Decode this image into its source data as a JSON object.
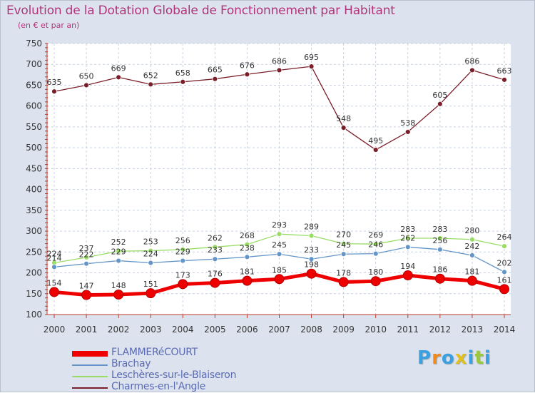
{
  "chart_data": {
    "type": "line",
    "title": "Evolution de la Dotation Globale de Fonctionnement par Habitant",
    "subtitle": "(en € et par an)",
    "xlabel": "",
    "ylabel": "",
    "ylim": [
      100,
      750
    ],
    "y_ticks": [
      "100",
      "150",
      "200",
      "250",
      "300",
      "350",
      "400",
      "450",
      "500",
      "550",
      "600",
      "650",
      "700",
      "750"
    ],
    "grid": true,
    "categories": [
      "2000",
      "2001",
      "2002",
      "2003",
      "2004",
      "2005",
      "2006",
      "2007",
      "2008",
      "2009",
      "2010",
      "2011",
      "2012",
      "2013",
      "2014"
    ],
    "series": [
      {
        "name": "FLAMMERéCOURT",
        "color": "#ee0000",
        "values": [
          154,
          147,
          148,
          151,
          173,
          176,
          181,
          185,
          198,
          178,
          180,
          194,
          186,
          181,
          161
        ]
      },
      {
        "name": "Brachay",
        "color": "#6495c8",
        "values": [
          214,
          222,
          229,
          224,
          229,
          233,
          238,
          245,
          233,
          245,
          246,
          262,
          256,
          242,
          202
        ]
      },
      {
        "name": "Leschères-sur-le-Blaiseron",
        "color": "#99dd66",
        "values": [
          224,
          237,
          252,
          253,
          256,
          262,
          268,
          293,
          289,
          270,
          269,
          283,
          283,
          280,
          264
        ]
      },
      {
        "name": "Charmes-en-l'Angle",
        "color": "#7a1e2a",
        "values": [
          635,
          650,
          669,
          652,
          658,
          665,
          676,
          686,
          695,
          548,
          495,
          538,
          605,
          686,
          663
        ]
      }
    ],
    "legend_position": "bottom-left"
  },
  "brand": {
    "letters": [
      "P",
      "r",
      "o",
      "x",
      "i",
      "t",
      "i"
    ],
    "colors": [
      "#3aa0e0",
      "#f08a1c",
      "#3aa0e0",
      "#e0c020",
      "#3aa0e0",
      "#9ac83c",
      "#3aa0e0"
    ]
  }
}
